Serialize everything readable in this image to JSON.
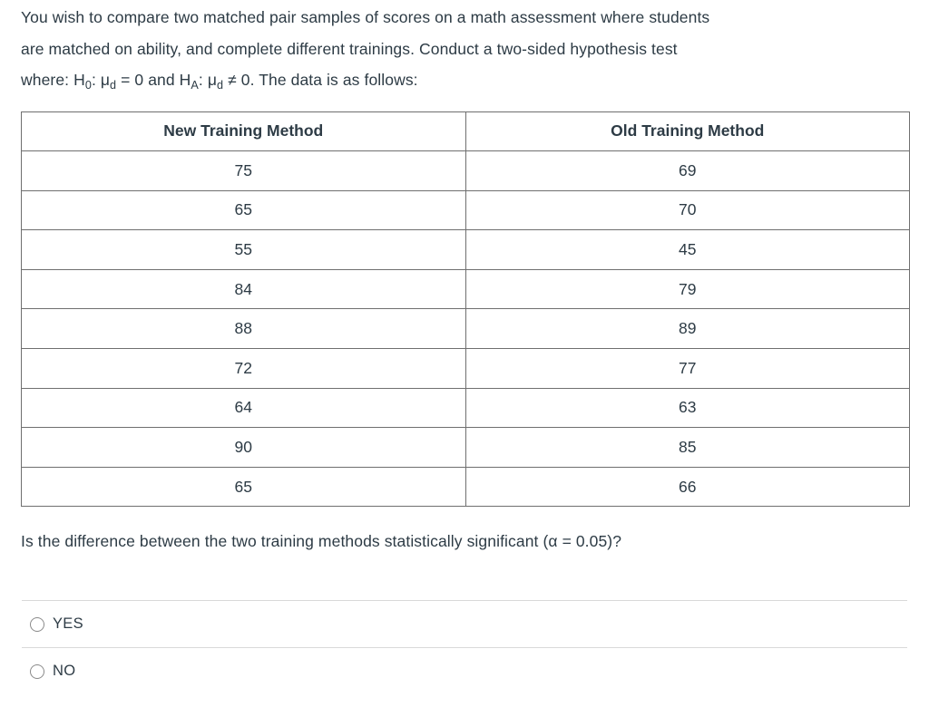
{
  "intro": {
    "line1": "You wish to compare two matched pair samples of scores on a math assessment where students",
    "line2": "are matched on ability, and complete different trainings. Conduct a two-sided hypothesis test"
  },
  "hypothesis": {
    "seg1": "where: H",
    "sub1": "0",
    "seg2": ": μ",
    "sub2": "d",
    "seg3": " = 0 and H",
    "sub3": "A",
    "seg4": ": μ",
    "sub4": "d",
    "seg5": " ≠ 0.  The data is as follows:"
  },
  "table": {
    "columns": [
      "New Training Method",
      "Old Training Method"
    ],
    "rows": [
      [
        75,
        69
      ],
      [
        65,
        70
      ],
      [
        55,
        45
      ],
      [
        84,
        79
      ],
      [
        88,
        89
      ],
      [
        72,
        77
      ],
      [
        64,
        63
      ],
      [
        90,
        85
      ],
      [
        65,
        66
      ]
    ]
  },
  "question": {
    "text": "Is the difference between the two training methods statistically significant (α = 0.05)?"
  },
  "answers": [
    {
      "label": "YES"
    },
    {
      "label": "NO"
    }
  ],
  "colors": {
    "text": "#2d3b45",
    "table_border": "#6f6f6f",
    "divider": "#d9d9d9",
    "radio_border": "#8a8a8a",
    "background": "#ffffff"
  }
}
